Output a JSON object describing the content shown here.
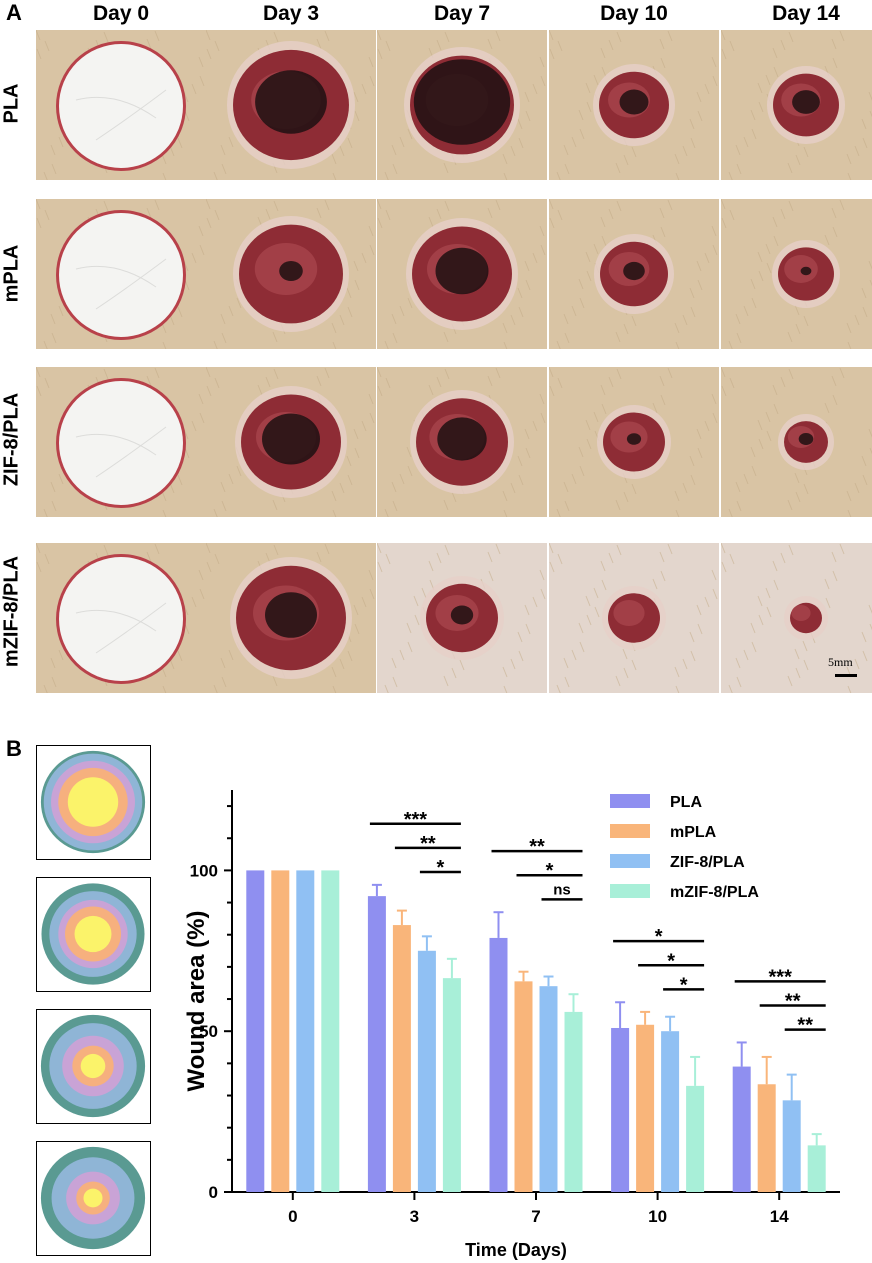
{
  "panel_a": {
    "letter": "A",
    "days": [
      "Day 0",
      "Day 3",
      "Day 7",
      "Day 10",
      "Day 14"
    ],
    "groups": [
      "PLA",
      "mPLA",
      "ZIF-8/PLA",
      "mZIF-8/PLA"
    ],
    "scale_bar": "5mm"
  },
  "panel_b": {
    "letter": "B"
  },
  "chart_data": {
    "type": "bar",
    "title": "",
    "xlabel": "Time (Days)",
    "ylabel": "Wound area (%)",
    "ylim": [
      0,
      125
    ],
    "yticks": [
      0,
      50,
      100
    ],
    "categories": [
      "0",
      "3",
      "7",
      "10",
      "14"
    ],
    "series": [
      {
        "name": "PLA",
        "color": "#8f8ff0",
        "values": [
          100,
          92,
          79,
          51,
          39
        ],
        "errors": [
          0,
          3.5,
          8,
          8,
          7.5
        ]
      },
      {
        "name": "mPLA",
        "color": "#f9b57a",
        "values": [
          100,
          83,
          65.5,
          52,
          33.5
        ],
        "errors": [
          0,
          4.5,
          3,
          4,
          8.5
        ]
      },
      {
        "name": "ZIF-8/PLA",
        "color": "#90c0f3",
        "values": [
          100,
          75,
          64,
          50,
          28.5
        ],
        "errors": [
          0,
          4.5,
          3,
          4.5,
          8
        ]
      },
      {
        "name": "mZIF-8/PLA",
        "color": "#a8efd8",
        "values": [
          100,
          66.5,
          56,
          33,
          14.5
        ],
        "errors": [
          0,
          6,
          5.5,
          9,
          3.5
        ]
      }
    ],
    "significance": [
      {
        "category": "3",
        "from": 0,
        "to": 3,
        "label": "***"
      },
      {
        "category": "3",
        "from": 1,
        "to": 3,
        "label": "**"
      },
      {
        "category": "3",
        "from": 2,
        "to": 3,
        "label": "*"
      },
      {
        "category": "7",
        "from": 0,
        "to": 3,
        "label": "**"
      },
      {
        "category": "7",
        "from": 1,
        "to": 3,
        "label": "*"
      },
      {
        "category": "7",
        "from": 2,
        "to": 3,
        "label": "ns"
      },
      {
        "category": "10",
        "from": 0,
        "to": 3,
        "label": "*"
      },
      {
        "category": "10",
        "from": 1,
        "to": 3,
        "label": "*"
      },
      {
        "category": "10",
        "from": 2,
        "to": 3,
        "label": "*"
      },
      {
        "category": "14",
        "from": 0,
        "to": 3,
        "label": "***"
      },
      {
        "category": "14",
        "from": 1,
        "to": 3,
        "label": "**"
      },
      {
        "category": "14",
        "from": 2,
        "to": 3,
        "label": "**"
      }
    ],
    "legend_position": "top-right",
    "wound_trace_colors": [
      "#5a9a92",
      "#8fb5d6",
      "#c9a3d6",
      "#f6b07e",
      "#fbf36a"
    ]
  }
}
